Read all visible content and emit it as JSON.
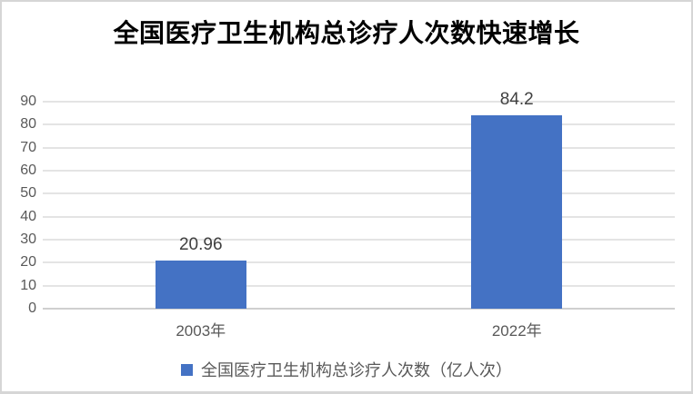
{
  "title": "全国医疗卫生机构总诊疗人次数快速增长",
  "colors": {
    "bar": "#4472C4",
    "gridline": "#E4E4E4",
    "axis_line": "#CFCFCF",
    "axis_text": "#595959",
    "data_label": "#404040",
    "legend_text": "#595959",
    "frame_border": "#D6D6D6",
    "title_text": "#000000"
  },
  "chart_data": {
    "type": "bar",
    "title": "全国医疗卫生机构总诊疗人次数快速增长",
    "categories": [
      "2003年",
      "2022年"
    ],
    "values": [
      20.96,
      84.2
    ],
    "data_labels": [
      "20.96",
      "84.2"
    ],
    "xlabel": "",
    "ylabel": "",
    "ylim": [
      0,
      90
    ],
    "yticks": [
      0,
      10,
      20,
      30,
      40,
      50,
      60,
      70,
      80,
      90
    ],
    "grid": true,
    "bar_color": "#4472C4",
    "legend": {
      "position": "bottom",
      "entries": [
        {
          "label": "全国医疗卫生机构总诊疗人次数（亿人次）",
          "marker_color": "#4472C4"
        }
      ]
    }
  }
}
